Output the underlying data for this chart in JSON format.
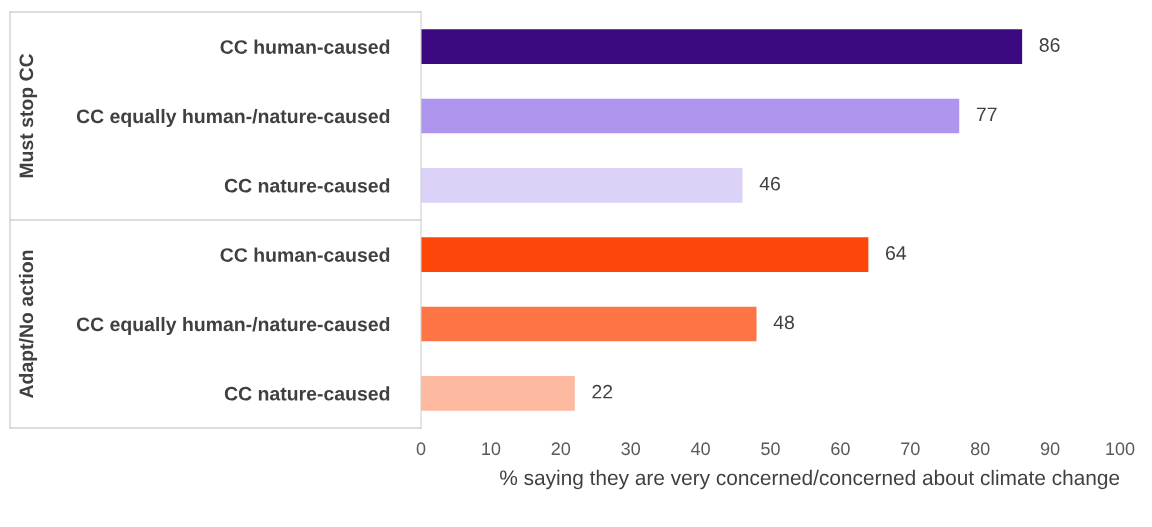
{
  "chart_data": {
    "type": "bar",
    "orientation": "horizontal",
    "categories": [
      "CC human-caused",
      "CC equally human-/nature-caused",
      "CC nature-caused",
      "CC human-caused",
      "CC equally human-/nature-caused",
      "CC nature-caused"
    ],
    "values": [
      86,
      77,
      46,
      64,
      48,
      22
    ],
    "colors": [
      "#3c0a80",
      "#ae95ee",
      "#dcd1f7",
      "#fd470a",
      "#fe7444",
      "#feb9a1"
    ],
    "xlim": [
      0,
      100
    ],
    "xticks": [
      0,
      10,
      20,
      30,
      40,
      50,
      60,
      70,
      80,
      90,
      100
    ],
    "xlabel": "% saying they are very concerned/concerned about climate change",
    "annotations": [
      "Must stop CC",
      "Adapt/No action"
    ],
    "data_labels": true,
    "grid": false,
    "legend": false
  }
}
